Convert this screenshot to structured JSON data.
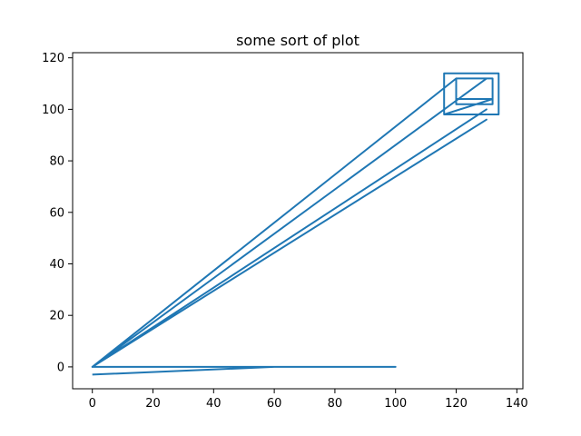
{
  "chart_data": {
    "type": "line",
    "title": "some sort of plot",
    "xlabel": "",
    "ylabel": "",
    "xlim": [
      -6.5,
      142
    ],
    "ylim": [
      -8.5,
      122
    ],
    "xticks": [
      0,
      20,
      40,
      60,
      80,
      100,
      120,
      140
    ],
    "yticks": [
      0,
      20,
      40,
      60,
      80,
      100,
      120
    ],
    "grid": false,
    "color": "#1f77b4",
    "series": [
      {
        "x": [
          0,
          60,
          100,
          0,
          0,
          130,
          0,
          130,
          0,
          130,
          0,
          120,
          120,
          132,
          132,
          120,
          120,
          132,
          116,
          116,
          134,
          134,
          116,
          116
        ],
        "y": [
          -3,
          0,
          0,
          0,
          0,
          96,
          0,
          100,
          0,
          112,
          0,
          112,
          102,
          102,
          112,
          112,
          104,
          104,
          98,
          114,
          114,
          98,
          98,
          114
        ]
      }
    ]
  }
}
